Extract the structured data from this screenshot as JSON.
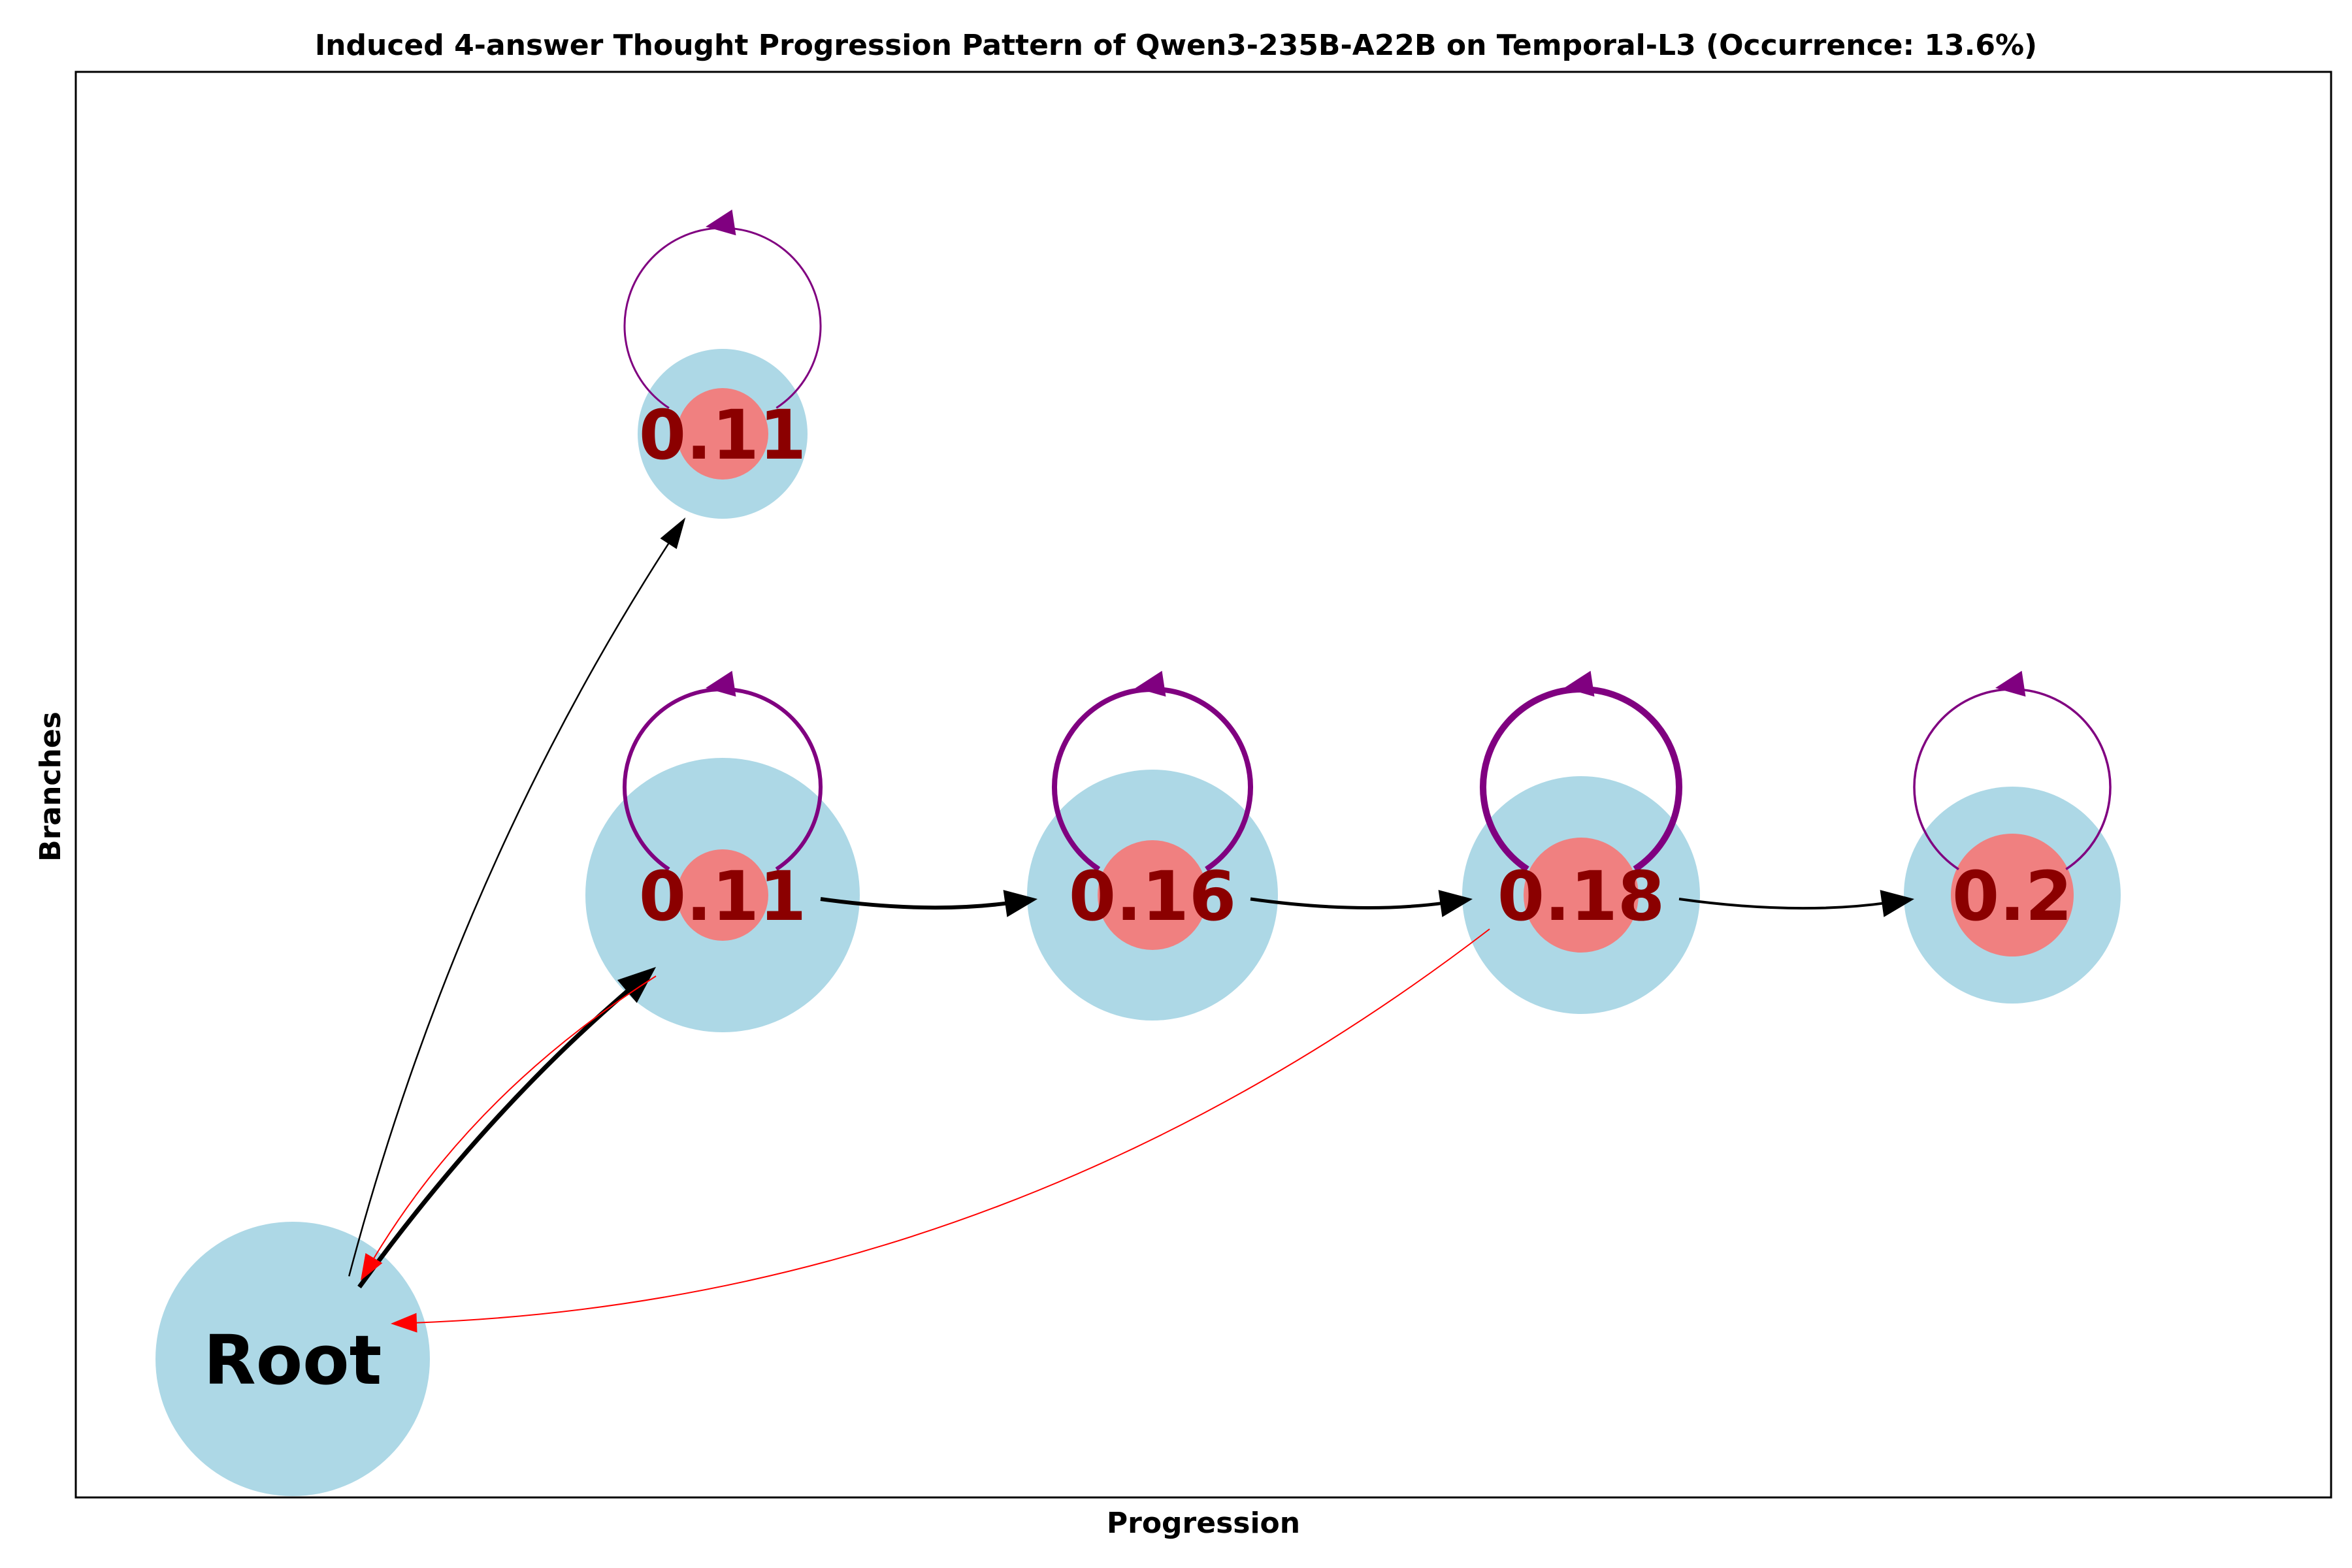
{
  "figure": {
    "title": "Induced 4-answer Thought Progression Pattern of Qwen3-235B-A22B on Temporal-L3 (Occurrence: 13.6%)",
    "xlabel": "Progression",
    "ylabel": "Branches"
  },
  "colors": {
    "node_fill": "#add8e6",
    "inner_fill": "#f08080",
    "value_text": "#8b0000",
    "root_text": "#000000",
    "forward_edge": "#000000",
    "back_edge": "#ff0000",
    "self_loop": "#800080"
  },
  "chart_data": {
    "type": "graph",
    "nodes": [
      {
        "id": "root",
        "label": "Root",
        "step": 0,
        "branch": 0
      },
      {
        "id": "a",
        "label": "0.11",
        "value": 0.11,
        "step": 1,
        "branch": 1
      },
      {
        "id": "b",
        "label": "0.16",
        "value": 0.16,
        "step": 2,
        "branch": 1
      },
      {
        "id": "c",
        "label": "0.18",
        "value": 0.18,
        "step": 3,
        "branch": 1
      },
      {
        "id": "d",
        "label": "0.2",
        "value": 0.2,
        "step": 4,
        "branch": 1
      },
      {
        "id": "e",
        "label": "0.11",
        "value": 0.11,
        "step": 1,
        "branch": 2
      }
    ],
    "edges": [
      {
        "from": "root",
        "to": "a",
        "kind": "forward"
      },
      {
        "from": "root",
        "to": "e",
        "kind": "forward"
      },
      {
        "from": "a",
        "to": "b",
        "kind": "forward"
      },
      {
        "from": "b",
        "to": "c",
        "kind": "forward"
      },
      {
        "from": "c",
        "to": "d",
        "kind": "forward"
      },
      {
        "from": "a",
        "to": "root",
        "kind": "backtrack"
      },
      {
        "from": "c",
        "to": "root",
        "kind": "backtrack"
      },
      {
        "from": "a",
        "to": "a",
        "kind": "self"
      },
      {
        "from": "b",
        "to": "b",
        "kind": "self"
      },
      {
        "from": "c",
        "to": "c",
        "kind": "self"
      },
      {
        "from": "d",
        "to": "d",
        "kind": "self"
      },
      {
        "from": "e",
        "to": "e",
        "kind": "self"
      }
    ]
  }
}
